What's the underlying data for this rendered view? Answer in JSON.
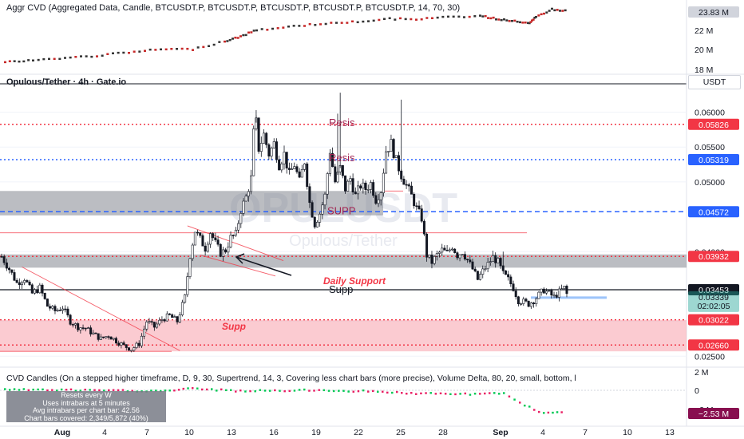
{
  "indicator_top": {
    "title": "Aggr CVD (Aggregated Data, Candle, BTCUSDT.P, BTCUSDT.P, BTCUSDT.P, BTCUSDT.P, BTCUSDT.P, 14, 70, 30)",
    "last_value": "23.83 M",
    "ticks": [
      "22 M",
      "20 M",
      "18 M"
    ]
  },
  "main": {
    "title": "Opulous/Tether · 4h · Gate.io",
    "currency": "USDT",
    "watermark": "OPULUSDT",
    "watermark_sub": "Opulous/Tether"
  },
  "indicator_bottom": {
    "title": "CVD Candles (On a stepped higher timeframe, D, 9, 30, Supertrend, 14, 3, Covering less chart bars (more precise), Volume Delta, 80, 20, small, bottom, l",
    "info_lines": [
      "Resets every W",
      "Uses intrabars at 5 minutes",
      "Avg intrabars per chart bar: 42.56",
      "Chart bars covered: 2,349/5,872 (40%)"
    ],
    "last_value": "−2.53 M",
    "ticks": [
      "2 M",
      "0",
      "−2 M"
    ]
  },
  "chart_data": {
    "type": "candlestick",
    "price_axis_ticks": [
      "0.06000",
      "0.05500",
      "0.05000",
      "0.04000",
      "0.03000",
      "0.02500"
    ],
    "price_ylim": [
      0.024,
      0.0635
    ],
    "x_ticks": [
      "Aug",
      "4",
      "7",
      "10",
      "13",
      "16",
      "19",
      "22",
      "25",
      "28",
      "Sep",
      "4",
      "7",
      "10",
      "13"
    ],
    "last_price": "0.03453",
    "current_price": "0.03339",
    "countdown": "02:02:05",
    "levels": [
      {
        "value": 0.05826,
        "label": "0.05826",
        "color": "#f23645",
        "style": "dotted",
        "annotation": "Resis"
      },
      {
        "value": 0.05319,
        "label": "0.05319",
        "color": "#2962ff",
        "style": "dotted",
        "annotation": "Resis"
      },
      {
        "value": 0.04572,
        "label": "0.04572",
        "color": "#2962ff",
        "style": "dashed",
        "annotation": "SUPP"
      },
      {
        "value": 0.03932,
        "label": "0.03932",
        "color": "#f23645",
        "style": "dotted",
        "annotation": ""
      },
      {
        "value": 0.03453,
        "label": "0.03453",
        "color": "#131722",
        "style": "solid",
        "annotation": "Supp"
      },
      {
        "value": 0.03022,
        "label": "0.03022",
        "color": "#f23645",
        "style": "dotted",
        "annotation": ""
      },
      {
        "value": 0.0266,
        "label": "0.02660",
        "color": "#f23645",
        "style": "dotted",
        "annotation": ""
      }
    ],
    "annotations": [
      "Daily Support",
      "Supp"
    ],
    "zones": [
      {
        "from": 0.0452,
        "to": 0.0487,
        "color": "#787b86"
      },
      {
        "from": 0.0377,
        "to": 0.0396,
        "color": "#787b86"
      },
      {
        "from": 0.0257,
        "to": 0.0302,
        "color": "#f7a1ab"
      }
    ],
    "close_path": [
      [
        0,
        0.0393
      ],
      [
        3,
        0.0375
      ],
      [
        6,
        0.0355
      ],
      [
        9,
        0.0362
      ],
      [
        12,
        0.034
      ],
      [
        15,
        0.0348
      ],
      [
        18,
        0.0322
      ],
      [
        21,
        0.0315
      ],
      [
        24,
        0.032
      ],
      [
        27,
        0.03
      ],
      [
        30,
        0.0292
      ],
      [
        33,
        0.029
      ],
      [
        36,
        0.0282
      ],
      [
        39,
        0.0275
      ],
      [
        42,
        0.028
      ],
      [
        45,
        0.0272
      ],
      [
        48,
        0.0265
      ],
      [
        51,
        0.026
      ],
      [
        54,
        0.0268
      ],
      [
        57,
        0.03
      ],
      [
        60,
        0.0292
      ],
      [
        63,
        0.0303
      ],
      [
        66,
        0.0308
      ],
      [
        69,
        0.03
      ],
      [
        72,
        0.0335
      ],
      [
        74,
        0.0395
      ],
      [
        76,
        0.043
      ],
      [
        78,
        0.0418
      ],
      [
        80,
        0.0405
      ],
      [
        82,
        0.0428
      ],
      [
        84,
        0.0412
      ],
      [
        86,
        0.0398
      ],
      [
        88,
        0.0402
      ],
      [
        90,
        0.042
      ],
      [
        92,
        0.0425
      ],
      [
        94,
        0.046
      ],
      [
        96,
        0.0478
      ],
      [
        98,
        0.0505
      ],
      [
        99,
        0.057
      ],
      [
        100,
        0.0585
      ],
      [
        101,
        0.0548
      ],
      [
        103,
        0.0568
      ],
      [
        105,
        0.054
      ],
      [
        107,
        0.0555
      ],
      [
        109,
        0.0525
      ],
      [
        111,
        0.054
      ],
      [
        113,
        0.051
      ],
      [
        115,
        0.0525
      ],
      [
        117,
        0.05
      ],
      [
        119,
        0.053
      ],
      [
        121,
        0.047
      ],
      [
        123,
        0.044
      ],
      [
        125,
        0.0455
      ],
      [
        127,
        0.048
      ],
      [
        129,
        0.0545
      ],
      [
        131,
        0.05
      ],
      [
        133,
        0.052
      ],
      [
        135,
        0.049
      ],
      [
        137,
        0.0505
      ],
      [
        139,
        0.048
      ],
      [
        141,
        0.0495
      ],
      [
        143,
        0.049
      ],
      [
        145,
        0.0498
      ],
      [
        147,
        0.0475
      ],
      [
        149,
        0.0488
      ],
      [
        151,
        0.0545
      ],
      [
        153,
        0.0555
      ],
      [
        155,
        0.053
      ],
      [
        157,
        0.051
      ],
      [
        159,
        0.0495
      ],
      [
        161,
        0.048
      ],
      [
        163,
        0.0462
      ],
      [
        165,
        0.0448
      ],
      [
        167,
        0.0395
      ],
      [
        169,
        0.0385
      ],
      [
        171,
        0.0395
      ],
      [
        173,
        0.0402
      ],
      [
        175,
        0.0398
      ],
      [
        177,
        0.0408
      ],
      [
        179,
        0.0395
      ],
      [
        181,
        0.04
      ],
      [
        183,
        0.0388
      ],
      [
        185,
        0.0375
      ],
      [
        187,
        0.036
      ],
      [
        189,
        0.0372
      ],
      [
        191,
        0.0382
      ],
      [
        193,
        0.0392
      ],
      [
        195,
        0.0385
      ],
      [
        197,
        0.0368
      ],
      [
        199,
        0.036
      ],
      [
        201,
        0.0348
      ],
      [
        203,
        0.033
      ],
      [
        205,
        0.0328
      ],
      [
        207,
        0.0325
      ],
      [
        209,
        0.033
      ],
      [
        211,
        0.0338
      ],
      [
        213,
        0.0345
      ],
      [
        215,
        0.034
      ],
      [
        217,
        0.0335
      ],
      [
        219,
        0.0342
      ],
      [
        221,
        0.0348
      ],
      [
        222,
        0.0339
      ]
    ]
  }
}
